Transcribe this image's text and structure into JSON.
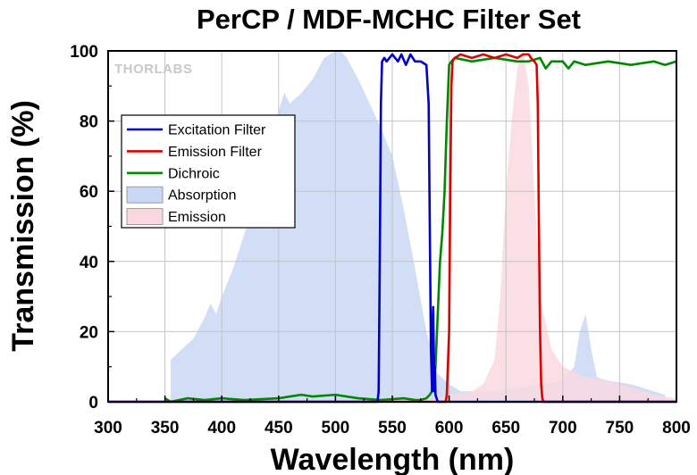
{
  "chart_data": {
    "type": "line",
    "title": "PerCP / MDF-MCHC Filter Set",
    "xlabel": "Wavelength (nm)",
    "ylabel": "Transmission (%)",
    "xlim": [
      300,
      800
    ],
    "ylim": [
      0,
      100
    ],
    "x_ticks": [
      300,
      350,
      400,
      450,
      500,
      550,
      600,
      650,
      700,
      750,
      800
    ],
    "y_ticks": [
      0,
      20,
      40,
      60,
      80,
      100
    ],
    "grid": true,
    "legend_position": "upper-left",
    "watermark": "THORLABS",
    "series": [
      {
        "name": "Excitation Filter",
        "kind": "line",
        "color": "#0000cc",
        "x": [
          300,
          537,
          538,
          539,
          540,
          541,
          543,
          545,
          550,
          555,
          558,
          562,
          566,
          570,
          575,
          580,
          582,
          583,
          584,
          585,
          585.5,
          586,
          586.5,
          587,
          587.5,
          588,
          590,
          800
        ],
        "y": [
          0,
          0,
          3,
          40,
          85,
          97,
          98,
          97,
          99,
          97,
          99,
          96,
          99,
          97,
          97,
          96,
          85,
          50,
          15,
          3,
          20,
          27,
          15,
          3,
          10,
          2,
          0,
          0
        ]
      },
      {
        "name": "Emission Filter",
        "kind": "line",
        "color": "#dd0000",
        "x": [
          300,
          597,
          598,
          600,
          601,
          602,
          603,
          605,
          610,
          620,
          630,
          640,
          650,
          660,
          665,
          670,
          672,
          675,
          677,
          678,
          679,
          680,
          681,
          682,
          683,
          800
        ],
        "y": [
          0,
          0,
          2,
          20,
          60,
          90,
          97,
          98,
          99,
          98,
          99,
          98,
          99,
          98,
          99,
          99,
          98,
          97,
          96,
          85,
          50,
          20,
          5,
          1,
          0,
          0
        ]
      },
      {
        "name": "Dichroic",
        "kind": "line",
        "color": "#008800",
        "x": [
          350,
          355,
          370,
          385,
          400,
          420,
          450,
          470,
          480,
          500,
          520,
          540,
          560,
          570,
          575,
          580,
          583,
          585,
          588,
          590,
          592,
          594,
          596,
          598,
          600,
          602,
          605,
          620,
          640,
          660,
          670,
          680,
          685,
          690,
          700,
          705,
          710,
          720,
          740,
          760,
          780,
          790,
          800
        ],
        "y": [
          1,
          0,
          1,
          0.5,
          1,
          0.5,
          1,
          2,
          1.5,
          2,
          1,
          0.5,
          1,
          0.5,
          0.5,
          1,
          2,
          3,
          10,
          25,
          40,
          48,
          60,
          80,
          96,
          97,
          98,
          97,
          98,
          97,
          97,
          98,
          95,
          97,
          97,
          95,
          97,
          96,
          97,
          96,
          97,
          96,
          97
        ]
      },
      {
        "name": "Absorption",
        "kind": "area",
        "color": "#c9d8f5",
        "x": [
          355,
          365,
          375,
          385,
          390,
          395,
          400,
          410,
          420,
          430,
          440,
          450,
          455,
          460,
          470,
          480,
          490,
          500,
          505,
          510,
          520,
          530,
          540,
          545,
          550,
          560,
          570,
          580,
          590,
          600,
          610,
          620,
          640,
          660,
          680,
          700,
          710,
          715,
          720,
          725,
          730,
          740,
          760,
          780,
          790
        ],
        "y": [
          12,
          15,
          18,
          24,
          28,
          25,
          30,
          38,
          48,
          60,
          70,
          83,
          88,
          85,
          88,
          92,
          98,
          100,
          100,
          98,
          92,
          85,
          78,
          74,
          70,
          55,
          38,
          20,
          8,
          5,
          3,
          3,
          3,
          4,
          5,
          6,
          10,
          20,
          25,
          15,
          7,
          6,
          5,
          3,
          2
        ]
      },
      {
        "name": "Emission",
        "kind": "area",
        "color": "#f9d9e1",
        "x": [
          580,
          600,
          620,
          630,
          640,
          645,
          650,
          655,
          660,
          665,
          670,
          675,
          680,
          690,
          700,
          720,
          740,
          760,
          780,
          800
        ],
        "y": [
          0,
          2,
          3,
          5,
          12,
          30,
          60,
          80,
          95,
          100,
          90,
          60,
          30,
          15,
          10,
          7,
          6,
          4,
          2,
          1
        ]
      }
    ]
  }
}
